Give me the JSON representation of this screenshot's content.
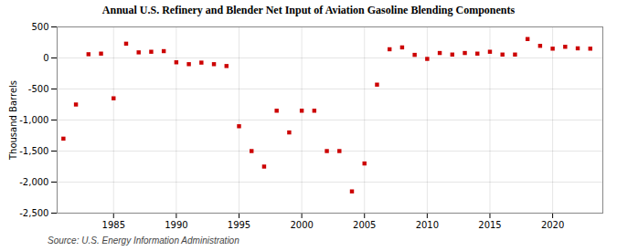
{
  "chart_data": {
    "type": "scatter",
    "title": "Annual U.S. Refinery and Blender Net Input of Aviation Gasoline Blending Components",
    "ylabel": "Thousand Barrels",
    "source": "Source: U.S. Energy Information Administration",
    "color": "#cc0000",
    "marker": "square",
    "x": [
      1981,
      1982,
      1983,
      1984,
      1985,
      1986,
      1987,
      1988,
      1989,
      1990,
      1991,
      1992,
      1993,
      1994,
      1995,
      1996,
      1997,
      1998,
      1999,
      2000,
      2001,
      2002,
      2003,
      2004,
      2005,
      2006,
      2007,
      2008,
      2009,
      2010,
      2011,
      2012,
      2013,
      2014,
      2015,
      2016,
      2017,
      2018,
      2019,
      2020,
      2021,
      2022,
      2023
    ],
    "values": [
      -1300,
      -750,
      60,
      70,
      -650,
      230,
      90,
      100,
      110,
      -70,
      -100,
      -75,
      -100,
      -130,
      -1100,
      -1500,
      -1750,
      -850,
      -1200,
      -850,
      -850,
      -1500,
      -1500,
      -2150,
      -1700,
      -430,
      140,
      170,
      50,
      -15,
      80,
      55,
      80,
      70,
      100,
      55,
      55,
      305,
      195,
      150,
      180,
      155,
      150
    ],
    "xlim": [
      1980.5,
      2024
    ],
    "xticks": [
      1985,
      1990,
      1995,
      2000,
      2005,
      2010,
      2015,
      2020
    ],
    "ylim": [
      -2500,
      500
    ],
    "yticks": [
      {
        "value": -2500,
        "label": "-2,500"
      },
      {
        "value": -2000,
        "label": "-2,000"
      },
      {
        "value": -1500,
        "label": "-1,500"
      },
      {
        "value": -1000,
        "label": "-1,000"
      },
      -500,
      0,
      500
    ],
    "grid": true
  }
}
